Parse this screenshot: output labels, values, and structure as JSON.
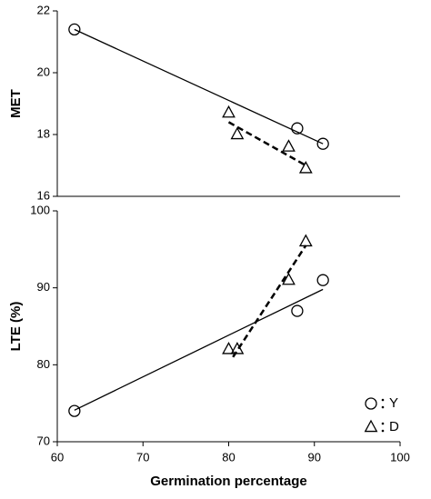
{
  "chart_data": [
    {
      "type": "scatter",
      "ylabel": "MET",
      "xlim": [
        60,
        100
      ],
      "ylim": [
        16,
        22
      ],
      "yticks": [
        16,
        18,
        20,
        22
      ],
      "series": [
        {
          "name": "Y",
          "color": "#000000",
          "marker": "circle",
          "x": [
            62,
            88,
            91
          ],
          "values": [
            21.4,
            18.2,
            17.7
          ],
          "trend": {
            "x": [
              62,
              91
            ],
            "values": [
              21.4,
              17.7
            ],
            "style": "solid"
          }
        },
        {
          "name": "D",
          "color": "#000000",
          "marker": "triangle",
          "x": [
            80,
            81,
            87,
            89
          ],
          "values": [
            18.7,
            18.0,
            17.6,
            16.9
          ],
          "trend": {
            "x": [
              80,
              89
            ],
            "values": [
              18.4,
              17.0
            ],
            "style": "dashed"
          }
        }
      ]
    },
    {
      "type": "scatter",
      "ylabel": "LTE (%)",
      "xlabel": "Germination percentage",
      "xlim": [
        60,
        100
      ],
      "xticks": [
        60,
        70,
        80,
        90,
        100
      ],
      "ylim": [
        70,
        100
      ],
      "yticks": [
        70,
        80,
        90,
        100
      ],
      "legend": "lower right",
      "series": [
        {
          "name": "Y",
          "color": "#000000",
          "marker": "circle",
          "x": [
            62,
            88,
            91
          ],
          "values": [
            74,
            87,
            91
          ],
          "trend": {
            "x": [
              62,
              91
            ],
            "values": [
              74.1,
              89.8
            ],
            "style": "solid"
          }
        },
        {
          "name": "D",
          "color": "#000000",
          "marker": "triangle",
          "x": [
            80,
            81,
            87,
            89
          ],
          "values": [
            82,
            82,
            91,
            96
          ],
          "trend": {
            "x": [
              80.5,
              89
            ],
            "values": [
              81,
              95.5
            ],
            "style": "dashed"
          }
        }
      ]
    }
  ]
}
